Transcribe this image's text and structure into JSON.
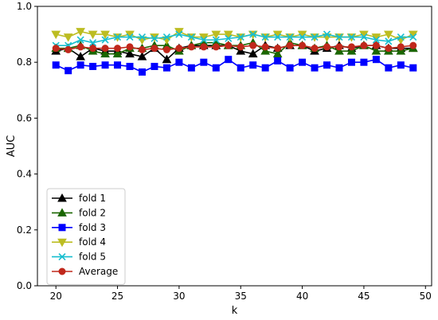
{
  "chart_data": {
    "type": "line",
    "title": "",
    "xlabel": "k",
    "ylabel": "AUC",
    "xlim": [
      18.5,
      50.5
    ],
    "ylim": [
      0.0,
      1.0
    ],
    "x_ticks": [
      20,
      25,
      30,
      35,
      40,
      45,
      50
    ],
    "y_ticks": [
      0.0,
      0.2,
      0.4,
      0.6,
      0.8,
      1.0
    ],
    "grid": false,
    "legend_position": "lower-left",
    "x": [
      20,
      21,
      22,
      23,
      24,
      25,
      26,
      27,
      28,
      29,
      30,
      31,
      32,
      33,
      34,
      35,
      36,
      37,
      38,
      39,
      40,
      41,
      42,
      43,
      44,
      45,
      46,
      47,
      48,
      49
    ],
    "series": [
      {
        "name": "fold 1",
        "color": "#000000",
        "marker": "triangle-up",
        "values": [
          0.84,
          0.85,
          0.82,
          0.85,
          0.84,
          0.84,
          0.83,
          0.82,
          0.85,
          0.81,
          0.85,
          0.86,
          0.86,
          0.86,
          0.86,
          0.84,
          0.83,
          0.86,
          0.85,
          0.86,
          0.86,
          0.84,
          0.85,
          0.86,
          0.85,
          0.86,
          0.86,
          0.85,
          0.85,
          0.85
        ]
      },
      {
        "name": "fold 2",
        "color": "#1a6600",
        "marker": "triangle-up",
        "values": [
          0.85,
          0.85,
          0.86,
          0.84,
          0.83,
          0.83,
          0.85,
          0.85,
          0.86,
          0.86,
          0.84,
          0.86,
          0.87,
          0.87,
          0.86,
          0.86,
          0.87,
          0.84,
          0.83,
          0.87,
          0.86,
          0.85,
          0.86,
          0.84,
          0.84,
          0.86,
          0.84,
          0.84,
          0.84,
          0.85
        ]
      },
      {
        "name": "fold 3",
        "color": "#0000ff",
        "marker": "square",
        "values": [
          0.79,
          0.77,
          0.79,
          0.785,
          0.79,
          0.79,
          0.785,
          0.765,
          0.785,
          0.78,
          0.8,
          0.78,
          0.8,
          0.78,
          0.81,
          0.78,
          0.79,
          0.78,
          0.805,
          0.78,
          0.8,
          0.78,
          0.79,
          0.78,
          0.8,
          0.8,
          0.81,
          0.78,
          0.79,
          0.78
        ]
      },
      {
        "name": "fold 4",
        "color": "#bcbd22",
        "marker": "triangle-down",
        "values": [
          0.9,
          0.89,
          0.91,
          0.9,
          0.9,
          0.89,
          0.9,
          0.88,
          0.89,
          0.88,
          0.91,
          0.89,
          0.89,
          0.9,
          0.9,
          0.89,
          0.9,
          0.89,
          0.9,
          0.89,
          0.9,
          0.89,
          0.89,
          0.89,
          0.89,
          0.9,
          0.89,
          0.9,
          0.88,
          0.9
        ]
      },
      {
        "name": "fold 5",
        "color": "#17becf",
        "marker": "x",
        "values": [
          0.86,
          0.86,
          0.88,
          0.87,
          0.88,
          0.89,
          0.89,
          0.89,
          0.885,
          0.89,
          0.9,
          0.89,
          0.88,
          0.88,
          0.885,
          0.89,
          0.9,
          0.89,
          0.89,
          0.89,
          0.89,
          0.89,
          0.9,
          0.89,
          0.89,
          0.89,
          0.88,
          0.875,
          0.89,
          0.89
        ]
      },
      {
        "name": "Average",
        "color": "#c0281c",
        "marker": "circle",
        "values": [
          0.85,
          0.845,
          0.855,
          0.85,
          0.85,
          0.85,
          0.855,
          0.845,
          0.85,
          0.845,
          0.85,
          0.855,
          0.855,
          0.855,
          0.86,
          0.855,
          0.86,
          0.855,
          0.85,
          0.86,
          0.86,
          0.85,
          0.855,
          0.855,
          0.855,
          0.86,
          0.86,
          0.85,
          0.855,
          0.86
        ]
      }
    ]
  }
}
